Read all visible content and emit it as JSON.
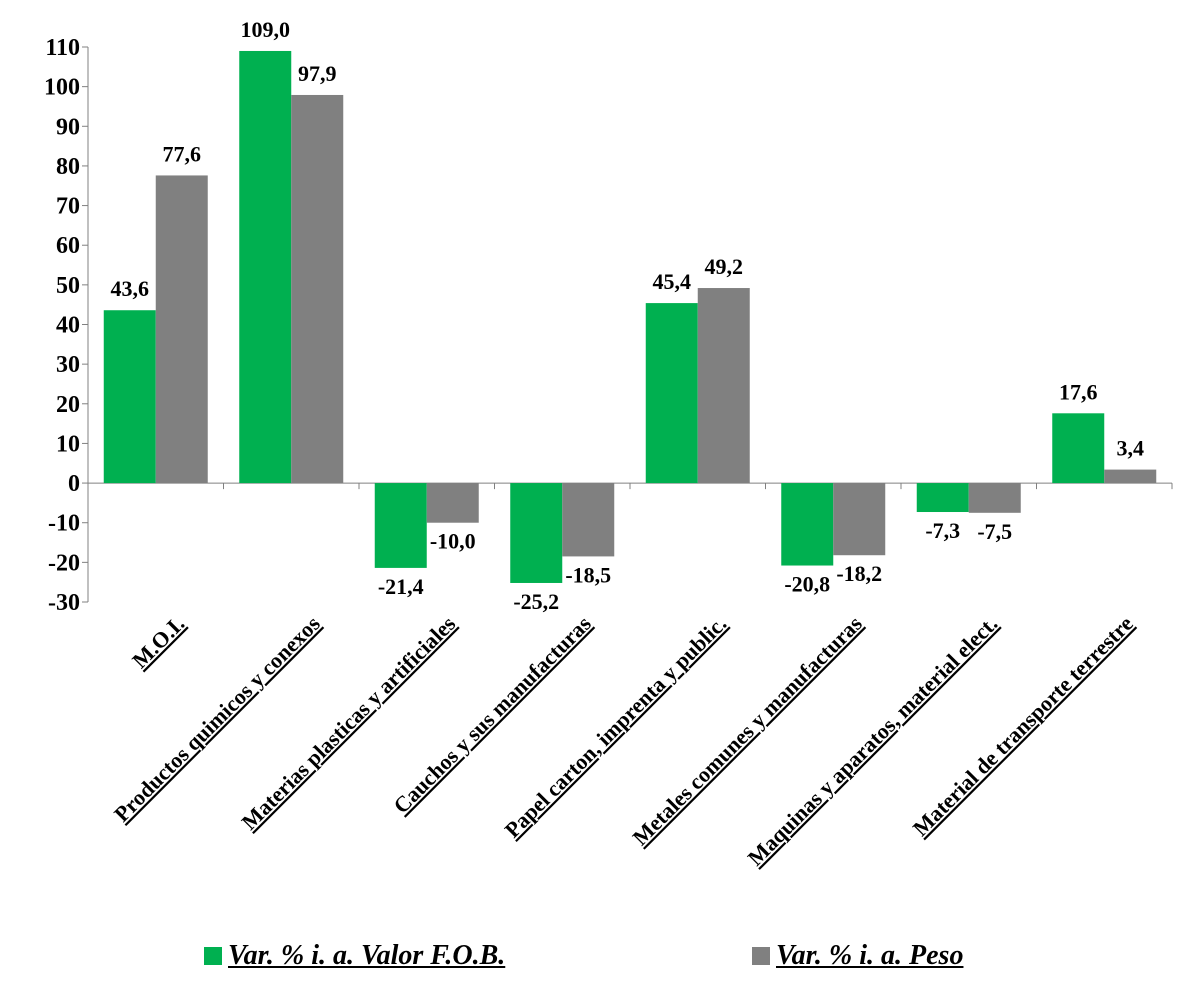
{
  "colors": {
    "fob": "#00B050",
    "peso": "#808080",
    "axis": "#808080"
  },
  "chart_data": {
    "type": "bar",
    "categories": [
      "M.O.I.",
      "Productos quimicos y conexos",
      "Materias plasticas y artificiales",
      "Cauchos y sus manufacturas",
      "Papel carton, imprenta y public.",
      "Metales comunes y manufacturas",
      "Maquinas y aparatos, material elect.",
      "Material de transporte terrestre"
    ],
    "series": [
      {
        "name": "Var. %  i. a. Valor F.O.B.",
        "values": [
          43.6,
          109.0,
          -21.4,
          -25.2,
          45.4,
          -20.8,
          -7.3,
          17.6
        ],
        "labels": [
          "43,6",
          "109,0",
          "-21,4",
          "-25,2",
          "45,4",
          "-20,8",
          "-7,3",
          "17,6"
        ]
      },
      {
        "name": "Var. % i. a. Peso",
        "values": [
          77.6,
          97.9,
          -10.0,
          -18.5,
          49.2,
          -18.2,
          -7.5,
          3.4
        ],
        "labels": [
          "77,6",
          "97,9",
          "-10,0",
          "-18,5",
          "49,2",
          "-18,2",
          "-7,5",
          "3,4"
        ]
      }
    ],
    "ylim": [
      -30,
      110
    ],
    "yticks": [
      -30,
      -20,
      -10,
      0,
      10,
      20,
      30,
      40,
      50,
      60,
      70,
      80,
      90,
      100,
      110
    ],
    "grid": false,
    "legend": "bottom"
  }
}
